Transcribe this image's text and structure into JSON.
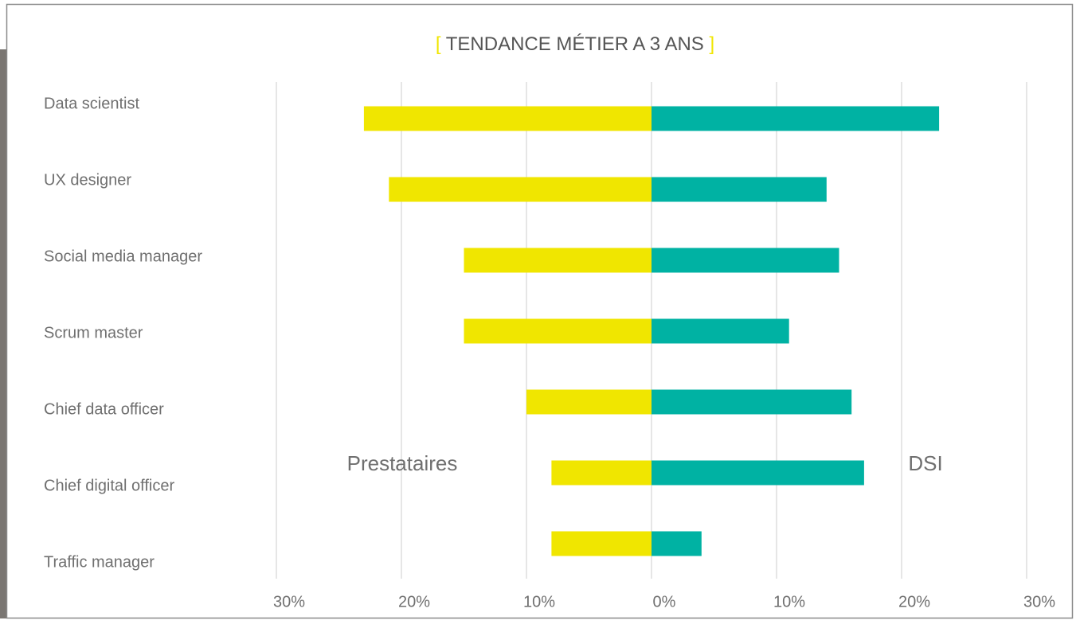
{
  "chart_data": {
    "type": "butterfly-bar",
    "title": "TENDANCE MÉTIER A 3 ANS",
    "title_open": "[",
    "title_close": "]",
    "categories": [
      "Data scientist",
      "UX designer",
      "Social media manager",
      "Scrum master",
      "Chief data officer",
      "Chief digital officer",
      "Traffic manager"
    ],
    "series": [
      {
        "name": "Prestataires",
        "color": "#f0e600",
        "values": [
          -23,
          -21,
          -15,
          -15,
          -10,
          -8,
          -8
        ]
      },
      {
        "name": "DSI",
        "color": "#00b2a3",
        "values": [
          23,
          14,
          15,
          11,
          16,
          17,
          4
        ]
      }
    ],
    "xlim": [
      -30,
      30
    ],
    "xticks": [
      {
        "value": -30,
        "label": "30%"
      },
      {
        "value": -20,
        "label": "20%"
      },
      {
        "value": -10,
        "label": "10%"
      },
      {
        "value": 0,
        "label": "0%"
      },
      {
        "value": 10,
        "label": "10%"
      },
      {
        "value": 20,
        "label": "20%"
      },
      {
        "value": 30,
        "label": "30%"
      }
    ],
    "grid": true
  }
}
